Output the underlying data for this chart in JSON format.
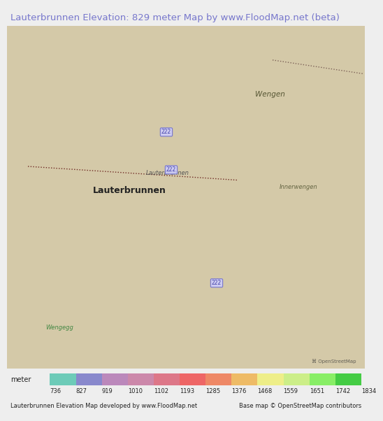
{
  "title": "Lauterbrunnen Elevation: 829 meter Map by www.FloodMap.net (beta)",
  "title_color": "#7777cc",
  "title_fontsize": 9.5,
  "bg_color": "#eeeeee",
  "footer_left": "Lauterbrunnen Elevation Map developed by www.FloodMap.net",
  "footer_right": "Base map © OpenStreetMap contributors",
  "legend_label": "meter",
  "legend_values": [
    736,
    827,
    919,
    1010,
    1102,
    1193,
    1285,
    1376,
    1468,
    1559,
    1651,
    1742,
    1834
  ],
  "legend_colors": [
    "#6dcbb8",
    "#8888cc",
    "#bb88bb",
    "#cc88aa",
    "#dd7788",
    "#ee6666",
    "#ee8866",
    "#eebb66",
    "#eeee88",
    "#ccee88",
    "#88ee66",
    "#44cc44"
  ],
  "fig_width": 5.12,
  "fig_height": 5.82,
  "map_bg_color": "#d4c9a8",
  "valley_color": "#7777bb",
  "Wengen_label": "Wengen",
  "Lauterbrunnen_label": "Lauterbrunnen",
  "Innerwengen_label": "Innerwengen",
  "Wengegg_label": "Wengegg"
}
